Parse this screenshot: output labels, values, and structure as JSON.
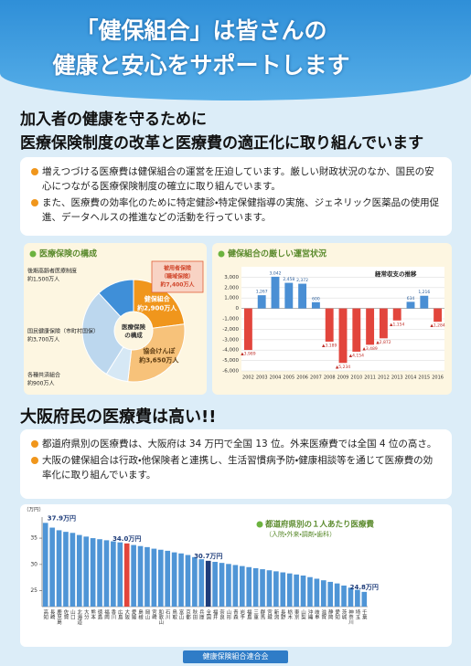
{
  "header": {
    "title_lines": [
      "「健保組合」は皆さんの",
      "健康と安心をサポートします"
    ]
  },
  "section1": {
    "heading_lines": [
      "加入者の健康を守るために",
      "医療保険制度の改革と医療費の適正化に取り組んでいます"
    ],
    "bullets": [
      "増えつづける医療費は健保組合の運営を圧迫しています。厳しい財政状況のなか、国民の安心につながる医療保険制度の確立に取り組んでいます。",
      "また、医療費の効率化のために特定健診・特定保健指導の実施、ジェネリック医薬品の使用促進、データヘルスの推進などの活動を行っています。"
    ]
  },
  "pie_chart": {
    "type": "pie",
    "title": "医療保険の構成",
    "center_lines": [
      "医療保険",
      "の構成"
    ],
    "categories": [
      "健保組合",
      "協会けんぽ",
      "各種共済組合",
      "国民健康保険（市町村国保）",
      "後期高齢者医療制度"
    ],
    "values": [
      2900,
      3650,
      900,
      3700,
      1500
    ],
    "value_labels": [
      "約2,900万人",
      "約3,650万人",
      "約900万人",
      "約3,700万人",
      "約1,500万人"
    ],
    "colors": [
      "#f0961c",
      "#f7c27a",
      "#d6e8f5",
      "#bcd7ee",
      "#3f8fd8"
    ],
    "annotation_lines": [
      "被用者保険",
      "（職域保険）",
      "約7,400万人"
    ]
  },
  "balance_chart": {
    "type": "bar",
    "title": "健保組合の厳しい運営状況",
    "series_name": "経常収支の推移",
    "categories": [
      "2002",
      "2003",
      "2004",
      "2005",
      "2006",
      "2007",
      "2008",
      "2009",
      "2010",
      "2011",
      "2012",
      "2013",
      "2014",
      "2015",
      "2016"
    ],
    "values": [
      -3989,
      1267,
      3042,
      2458,
      2372,
      600,
      -3189,
      -5234,
      -4154,
      -3489,
      -2872,
      -1154,
      634,
      1216,
      -1284
    ],
    "value_labels": [
      "▲3,989",
      "1,267",
      "3,042",
      "2,458",
      "2,372",
      "600",
      "▲3,189",
      "▲5,234",
      "▲4,154",
      "▲3,489",
      "▲2,872",
      "▲1,154",
      "634",
      "1,216",
      "▲1,284"
    ],
    "ylim": [
      -6000,
      4000
    ],
    "yticks": [
      {
        "value": 3000,
        "label": "3,000"
      },
      {
        "value": 2000,
        "label": "2,000"
      },
      {
        "value": 1000,
        "label": "1,000"
      },
      0,
      {
        "value": -1000,
        "label": "-1,000"
      },
      {
        "value": -2000,
        "label": "-2,000"
      },
      {
        "value": -3000,
        "label": "-3,000"
      },
      {
        "value": -4000,
        "label": "-4,000"
      },
      {
        "value": -5000,
        "label": "-5,000"
      },
      {
        "value": -6000,
        "label": "-6,000"
      }
    ],
    "positive_color": "#4a8fd4",
    "negative_color": "#e2453c"
  },
  "section2": {
    "heading": "大阪府民の医療費は高い!!",
    "bullets": [
      "都道府県別の医療費は、大阪府は 34 万円で全国 13 位。外来医療費では全国 4 位の高さ。",
      "大阪の健保組合は行政・他保険者と連携し、生活習慣病予防・健康相談等を通じて医療費の効率化に取り組んでいます。"
    ]
  },
  "prefecture_chart": {
    "type": "bar",
    "title": "都道府県別の１人あたり医療費",
    "subtitle": "（入院・外来・調剤・歯科）",
    "y_unit": "（万円）",
    "categories": [
      "高知",
      "長崎",
      "鹿児島",
      "佐賀",
      "山口",
      "北海道",
      "大分",
      "熊本",
      "徳島",
      "福岡",
      "香川",
      "広島",
      "大阪",
      "愛媛",
      "島根",
      "岡山",
      "宮崎",
      "和歌山",
      "石川",
      "鳥取",
      "富山",
      "京都",
      "秋田",
      "兵庫",
      "全国",
      "福井",
      "奈良",
      "山形",
      "青森",
      "岩手",
      "福島",
      "三重",
      "群馬",
      "宮城",
      "新潟",
      "長野",
      "栃木",
      "東京",
      "山梨",
      "沖縄",
      "岐阜",
      "滋賀",
      "静岡",
      "愛知",
      "茨城",
      "神奈川",
      "埼玉",
      "千葉"
    ],
    "values": [
      37.9,
      37.0,
      36.5,
      36.2,
      36.0,
      35.6,
      35.3,
      35.0,
      34.8,
      34.6,
      34.4,
      34.2,
      34.0,
      33.7,
      33.5,
      33.3,
      33.0,
      32.8,
      32.6,
      32.3,
      32.1,
      31.8,
      31.4,
      31.0,
      30.7,
      30.5,
      30.3,
      30.1,
      29.9,
      29.7,
      29.5,
      29.3,
      29.1,
      28.9,
      28.7,
      28.5,
      28.3,
      28.1,
      27.9,
      27.6,
      27.3,
      27.0,
      26.7,
      26.4,
      26.0,
      25.6,
      25.2,
      24.8
    ],
    "value_labels": [
      "37.9万円",
      null,
      null,
      null,
      null,
      null,
      null,
      null,
      null,
      null,
      null,
      null,
      "34.0万円",
      null,
      null,
      null,
      null,
      null,
      null,
      null,
      null,
      null,
      null,
      null,
      "30.7万円",
      null,
      null,
      null,
      null,
      null,
      null,
      null,
      null,
      null,
      null,
      null,
      null,
      null,
      null,
      null,
      null,
      null,
      null,
      null,
      null,
      null,
      null,
      "24.8万円"
    ],
    "color": "#4f95d6",
    "highlight": {
      "大阪": "#e2453c",
      "全国": "#1f3d7a"
    },
    "ylim": [
      22,
      39
    ],
    "yticks": [
      25,
      30,
      35
    ]
  },
  "footer": {
    "organization": "健康保険組合連合会"
  }
}
